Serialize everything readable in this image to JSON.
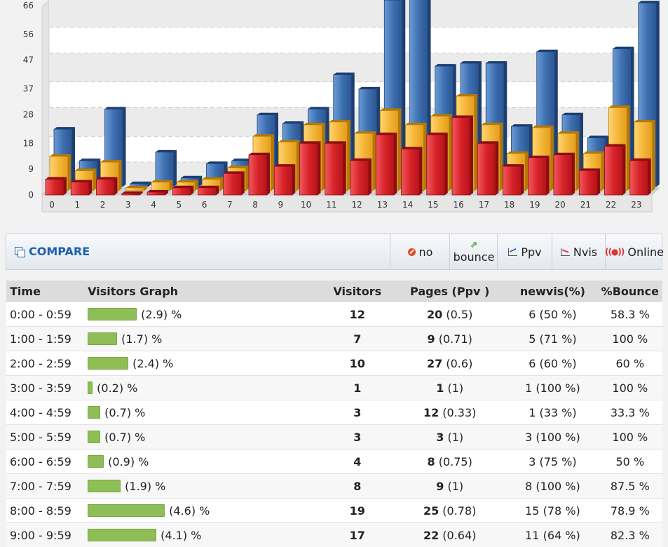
{
  "chart_data": {
    "type": "bar",
    "categories": [
      "0",
      "1",
      "2",
      "3",
      "4",
      "5",
      "6",
      "7",
      "8",
      "9",
      "10",
      "11",
      "12",
      "13",
      "14",
      "15",
      "16",
      "17",
      "18",
      "19",
      "20",
      "21",
      "22",
      "23"
    ],
    "y_ticks": [
      "0",
      "9",
      "18",
      "28",
      "37",
      "47",
      "56",
      "66"
    ],
    "ylim": [
      0,
      66
    ],
    "grid": true,
    "series": [
      {
        "color": "#3d6fb0",
        "values": [
          20,
          9,
          27,
          1,
          12,
          3,
          8,
          9,
          25,
          22,
          27,
          39,
          34,
          65,
          66,
          42,
          43,
          43,
          21,
          47,
          25,
          17,
          48,
          64
        ]
      },
      {
        "color": "#f4b63a",
        "values": [
          12,
          7,
          10,
          1,
          3,
          3,
          4,
          8,
          19,
          17,
          23,
          24,
          20,
          28,
          23,
          26,
          33,
          23,
          13,
          22,
          20,
          13,
          29,
          24
        ]
      },
      {
        "color": "#d8232a",
        "values": [
          5.5,
          4.5,
          5.5,
          0.5,
          1,
          2.5,
          2.5,
          7.5,
          14,
          10,
          18,
          18,
          12,
          21,
          16,
          21,
          27,
          18,
          10,
          13,
          14,
          8.5,
          17,
          12
        ]
      }
    ]
  },
  "toolbar": {
    "compare": "COMPARE",
    "no": "no",
    "bounce": "bounce",
    "ppv": "Ppv",
    "nvis": "Nvis",
    "online": "Online"
  },
  "table": {
    "headers": [
      "Time",
      "Visitors Graph",
      "Visitors",
      "Pages (Ppv )",
      "newvis(%)",
      "%Bounce"
    ],
    "rows": [
      {
        "time": "0:00 - 0:59",
        "pct": 2.9,
        "pct_label": "(2.9) %",
        "visitors": "12",
        "pages": "20",
        "ppv": "(0.5)",
        "newvis": "6 (50 %)",
        "bounce": "58.3 %"
      },
      {
        "time": "1:00 - 1:59",
        "pct": 1.7,
        "pct_label": "(1.7) %",
        "visitors": "7",
        "pages": "9",
        "ppv": "(0.71)",
        "newvis": "5 (71 %)",
        "bounce": "100 %"
      },
      {
        "time": "2:00 - 2:59",
        "pct": 2.4,
        "pct_label": "(2.4) %",
        "visitors": "10",
        "pages": "27",
        "ppv": "(0.6)",
        "newvis": "6 (60 %)",
        "bounce": "60 %"
      },
      {
        "time": "3:00 - 3:59",
        "pct": 0.2,
        "pct_label": "(0.2) %",
        "visitors": "1",
        "pages": "1",
        "ppv": "(1)",
        "newvis": "1 (100 %)",
        "bounce": "100 %"
      },
      {
        "time": "4:00 - 4:59",
        "pct": 0.7,
        "pct_label": "(0.7) %",
        "visitors": "3",
        "pages": "12",
        "ppv": "(0.33)",
        "newvis": "1 (33 %)",
        "bounce": "33.3 %"
      },
      {
        "time": "5:00 - 5:59",
        "pct": 0.7,
        "pct_label": "(0.7) %",
        "visitors": "3",
        "pages": "3",
        "ppv": "(1)",
        "newvis": "3 (100 %)",
        "bounce": "100 %"
      },
      {
        "time": "6:00 - 6:59",
        "pct": 0.9,
        "pct_label": "(0.9) %",
        "visitors": "4",
        "pages": "8",
        "ppv": "(0.75)",
        "newvis": "3 (75 %)",
        "bounce": "50 %"
      },
      {
        "time": "7:00 - 7:59",
        "pct": 1.9,
        "pct_label": "(1.9) %",
        "visitors": "8",
        "pages": "9",
        "ppv": "(1)",
        "newvis": "8 (100 %)",
        "bounce": "87.5 %"
      },
      {
        "time": "8:00 - 8:59",
        "pct": 4.6,
        "pct_label": "(4.6) %",
        "visitors": "19",
        "pages": "25",
        "ppv": "(0.78)",
        "newvis": "15 (78 %)",
        "bounce": "78.9 %"
      },
      {
        "time": "9:00 - 9:59",
        "pct": 4.1,
        "pct_label": "(4.1) %",
        "visitors": "17",
        "pages": "22",
        "ppv": "(0.64)",
        "newvis": "11 (64 %)",
        "bounce": "82.3 %"
      }
    ]
  }
}
